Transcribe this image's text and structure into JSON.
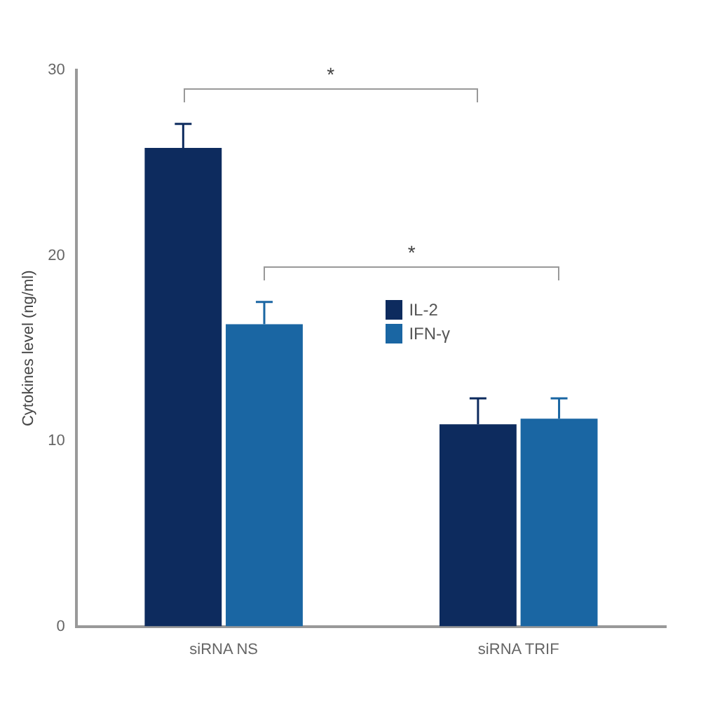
{
  "chart_data": {
    "type": "bar",
    "ylabel": "Cytokines level (ng/ml)",
    "categories": [
      "siRNA NS",
      "siRNA TRIF"
    ],
    "series": [
      {
        "name": "IL-2",
        "color": "#0d2b5e",
        "values": [
          25.8,
          10.9
        ],
        "errors": [
          1.3,
          1.4
        ]
      },
      {
        "name": "IFN-γ",
        "color": "#1a66a3",
        "values": [
          16.3,
          11.2
        ],
        "errors": [
          1.2,
          1.1
        ]
      }
    ],
    "ylim": [
      0,
      30
    ],
    "yticks": [
      0,
      10,
      20,
      30
    ],
    "grid": false,
    "legend": "center",
    "annotations": [
      "*",
      "*"
    ]
  }
}
